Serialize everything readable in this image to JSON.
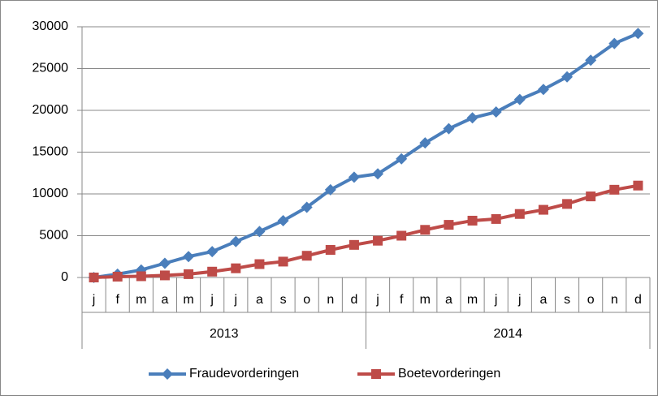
{
  "chart_data": {
    "type": "line",
    "categories": [
      "j",
      "f",
      "m",
      "a",
      "m",
      "j",
      "j",
      "a",
      "s",
      "o",
      "n",
      "d",
      "j",
      "f",
      "m",
      "a",
      "m",
      "j",
      "j",
      "a",
      "s",
      "o",
      "n",
      "d"
    ],
    "category_groups": [
      "2013",
      "2014"
    ],
    "series": [
      {
        "name": "Fraudevorderingen",
        "color": "#4a7ebb",
        "marker": "diamond",
        "values": [
          0,
          400,
          900,
          1700,
          2500,
          3100,
          4300,
          5500,
          6800,
          8400,
          10500,
          12000,
          12400,
          14200,
          16100,
          17800,
          19100,
          19800,
          21300,
          22500,
          24000,
          26000,
          28000,
          29200
        ]
      },
      {
        "name": "Boetevorderingen",
        "color": "#be4b48",
        "marker": "square",
        "values": [
          0,
          100,
          150,
          250,
          400,
          700,
          1100,
          1600,
          1900,
          2600,
          3300,
          3900,
          4400,
          5000,
          5700,
          6300,
          6800,
          7000,
          7600,
          8100,
          8800,
          9700,
          10500,
          11000
        ]
      }
    ],
    "ylim": [
      0,
      30000
    ],
    "yticks": [
      0,
      5000,
      10000,
      15000,
      20000,
      25000,
      30000
    ],
    "grid": true,
    "legend": "bottom"
  }
}
